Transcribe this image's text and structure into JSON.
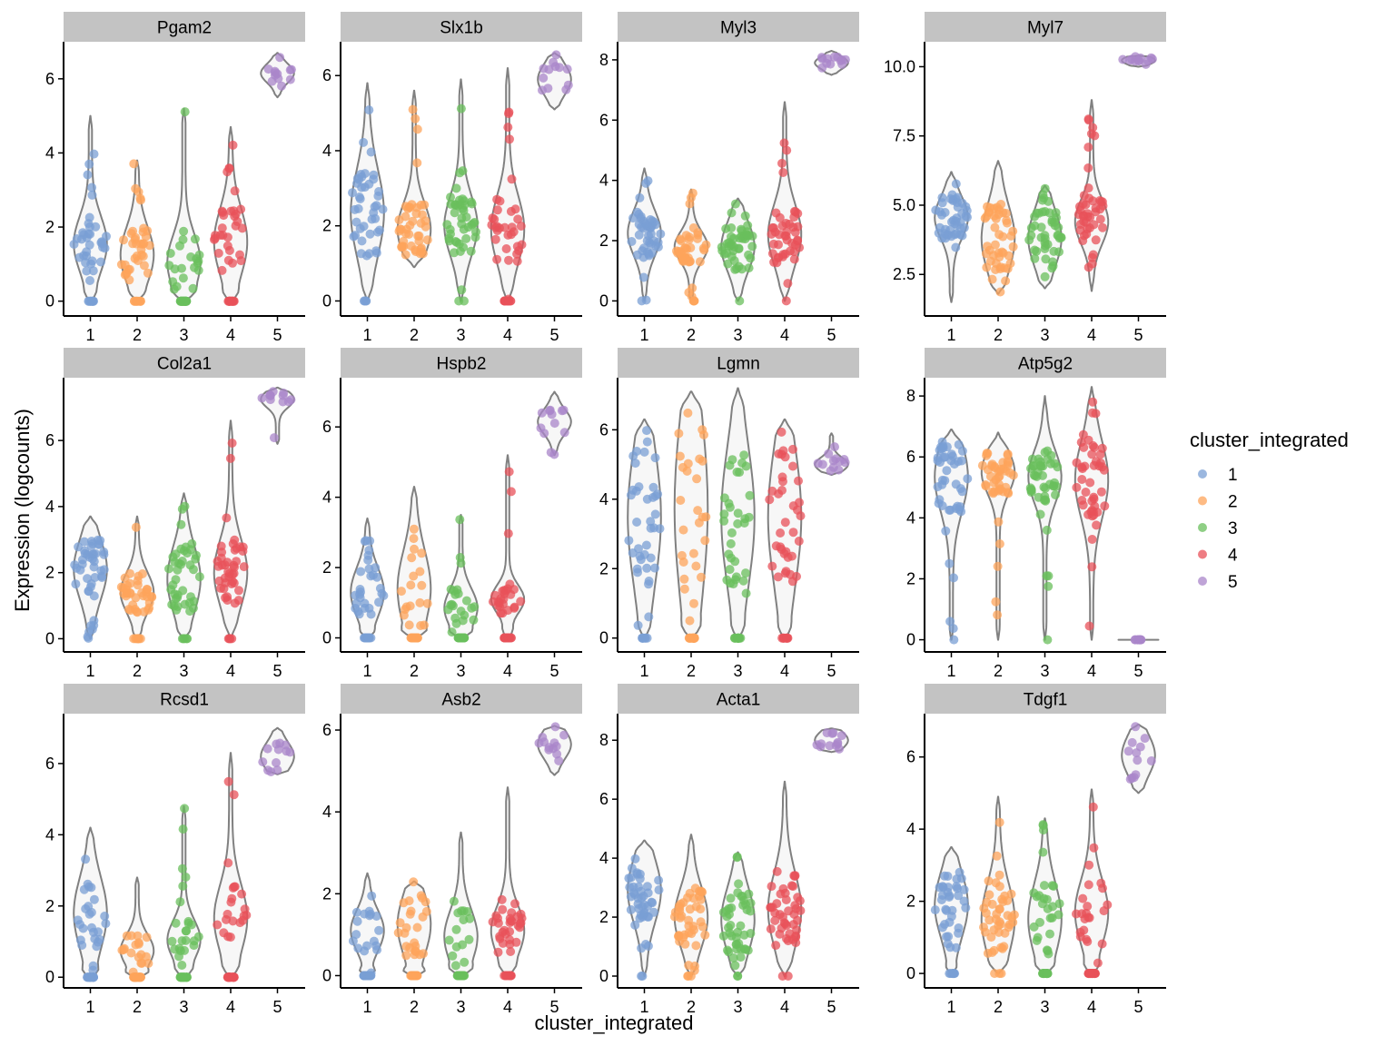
{
  "chart_data": {
    "type": "violin",
    "xlabel": "cluster_integrated",
    "ylabel": "Expression (logcounts)",
    "categories": [
      "1",
      "2",
      "3",
      "4",
      "5"
    ],
    "legend": {
      "title": "cluster_integrated",
      "placement": "right",
      "entries": [
        {
          "label": "1",
          "color": "#7a9fd4"
        },
        {
          "label": "2",
          "color": "#fda45b"
        },
        {
          "label": "3",
          "color": "#69bf5c"
        },
        {
          "label": "4",
          "color": "#e8525a"
        },
        {
          "label": "5",
          "color": "#a985c9"
        }
      ]
    },
    "panels": [
      {
        "gene": "Pgam2",
        "ylim": [
          -0.4,
          7.0
        ],
        "yticks": [
          0,
          2,
          4,
          6
        ],
        "tick_labels": [
          "0",
          "2",
          "4",
          "6"
        ],
        "series": [
          {
            "cluster": "1",
            "min": 0,
            "max": 5.0,
            "bulk": [
              0.8,
              2.3
            ],
            "zero_fraction": 0.3
          },
          {
            "cluster": "2",
            "min": 0,
            "max": 3.8,
            "bulk": [
              0.5,
              2.0
            ],
            "zero_fraction": 0.15
          },
          {
            "cluster": "3",
            "min": 0,
            "max": 5.2,
            "bulk": [
              0.3,
              1.8
            ],
            "zero_fraction": 0.5
          },
          {
            "cluster": "4",
            "min": 0,
            "max": 4.7,
            "bulk": [
              0.7,
              2.5
            ],
            "zero_fraction": 0.35
          },
          {
            "cluster": "5",
            "min": 5.5,
            "max": 6.7,
            "bulk": [
              5.9,
              6.4
            ],
            "zero_fraction": 0
          }
        ]
      },
      {
        "gene": "Slx1b",
        "ylim": [
          -0.4,
          6.9
        ],
        "yticks": [
          0,
          2,
          4,
          6
        ],
        "tick_labels": [
          "0",
          "2",
          "4",
          "6"
        ],
        "series": [
          {
            "cluster": "1",
            "min": 0,
            "max": 5.8,
            "bulk": [
              1.2,
              3.5
            ],
            "zero_fraction": 0.05
          },
          {
            "cluster": "2",
            "min": 0.9,
            "max": 5.6,
            "bulk": [
              1.2,
              2.6
            ],
            "zero_fraction": 0
          },
          {
            "cluster": "3",
            "min": 0,
            "max": 5.9,
            "bulk": [
              1.2,
              2.8
            ],
            "zero_fraction": 0.05
          },
          {
            "cluster": "4",
            "min": 0,
            "max": 6.2,
            "bulk": [
              1.0,
              2.8
            ],
            "zero_fraction": 0.15
          },
          {
            "cluster": "5",
            "min": 5.1,
            "max": 6.6,
            "bulk": [
              5.5,
              6.3
            ],
            "zero_fraction": 0
          }
        ]
      },
      {
        "gene": "Myl3",
        "ylim": [
          -0.5,
          8.6
        ],
        "yticks": [
          0,
          2,
          4,
          6,
          8
        ],
        "tick_labels": [
          "0",
          "2",
          "4",
          "6",
          "8"
        ],
        "series": [
          {
            "cluster": "1",
            "min": 0,
            "max": 4.4,
            "bulk": [
              1.5,
              3.0
            ],
            "zero_fraction": 0.02
          },
          {
            "cluster": "2",
            "min": 0,
            "max": 3.7,
            "bulk": [
              1.3,
              2.3
            ],
            "zero_fraction": 0.05
          },
          {
            "cluster": "3",
            "min": 0,
            "max": 3.4,
            "bulk": [
              1.0,
              2.6
            ],
            "zero_fraction": 0.02
          },
          {
            "cluster": "4",
            "min": 0,
            "max": 6.6,
            "bulk": [
              1.2,
              3.2
            ],
            "zero_fraction": 0.05
          },
          {
            "cluster": "5",
            "min": 7.5,
            "max": 8.3,
            "bulk": [
              7.7,
              8.1
            ],
            "zero_fraction": 0
          }
        ]
      },
      {
        "gene": "Myl7",
        "ylim": [
          1.0,
          10.9
        ],
        "yticks": [
          2.5,
          5.0,
          7.5,
          10.0
        ],
        "tick_labels": [
          "2.5",
          "5.0",
          "7.5",
          "10.0"
        ],
        "series": [
          {
            "cluster": "1",
            "min": 1.5,
            "max": 6.2,
            "bulk": [
              3.8,
              5.3
            ],
            "zero_fraction": 0
          },
          {
            "cluster": "2",
            "min": 1.8,
            "max": 6.6,
            "bulk": [
              2.6,
              5.0
            ],
            "zero_fraction": 0
          },
          {
            "cluster": "3",
            "min": 2.0,
            "max": 5.7,
            "bulk": [
              2.8,
              4.8
            ],
            "zero_fraction": 0
          },
          {
            "cluster": "4",
            "min": 1.9,
            "max": 8.8,
            "bulk": [
              3.6,
              5.2
            ],
            "zero_fraction": 0
          },
          {
            "cluster": "5",
            "min": 10.0,
            "max": 10.4,
            "bulk": [
              10.1,
              10.35
            ],
            "zero_fraction": 0
          }
        ]
      },
      {
        "gene": "Col2a1",
        "ylim": [
          -0.4,
          7.9
        ],
        "yticks": [
          0,
          2,
          4,
          6
        ],
        "tick_labels": [
          "0",
          "2",
          "4",
          "6"
        ],
        "series": [
          {
            "cluster": "1",
            "min": 0,
            "max": 3.7,
            "bulk": [
              1.2,
              3.0
            ],
            "zero_fraction": 0.03
          },
          {
            "cluster": "2",
            "min": 0,
            "max": 3.7,
            "bulk": [
              0.8,
              2.0
            ],
            "zero_fraction": 0.15
          },
          {
            "cluster": "3",
            "min": 0,
            "max": 4.4,
            "bulk": [
              0.8,
              2.8
            ],
            "zero_fraction": 0.15
          },
          {
            "cluster": "4",
            "min": 0,
            "max": 6.6,
            "bulk": [
              1.0,
              3.0
            ],
            "zero_fraction": 0.05
          },
          {
            "cluster": "5",
            "min": 5.9,
            "max": 7.6,
            "bulk": [
              7.0,
              7.5
            ],
            "zero_fraction": 0
          }
        ]
      },
      {
        "gene": "Hspb2",
        "ylim": [
          -0.4,
          7.4
        ],
        "yticks": [
          0,
          2,
          4,
          6
        ],
        "tick_labels": [
          "0",
          "2",
          "4",
          "6"
        ],
        "series": [
          {
            "cluster": "1",
            "min": 0,
            "max": 3.4,
            "bulk": [
              0.6,
              2.0
            ],
            "zero_fraction": 0.3
          },
          {
            "cluster": "2",
            "min": 0,
            "max": 4.3,
            "bulk": [
              0.3,
              2.5
            ],
            "zero_fraction": 0.6
          },
          {
            "cluster": "3",
            "min": 0,
            "max": 3.5,
            "bulk": [
              0.3,
              1.4
            ],
            "zero_fraction": 0.5
          },
          {
            "cluster": "4",
            "min": 0,
            "max": 5.2,
            "bulk": [
              0.7,
              1.5
            ],
            "zero_fraction": 0.4
          },
          {
            "cluster": "5",
            "min": 5.2,
            "max": 7.0,
            "bulk": [
              5.8,
              6.5
            ],
            "zero_fraction": 0
          }
        ]
      },
      {
        "gene": "Lgmn",
        "ylim": [
          -0.4,
          7.5
        ],
        "yticks": [
          0,
          2,
          4,
          6
        ],
        "tick_labels": [
          "0",
          "2",
          "4",
          "6"
        ],
        "series": [
          {
            "cluster": "1",
            "min": 0,
            "max": 6.3,
            "bulk": [
              1.5,
              5.5
            ],
            "zero_fraction": 0.15
          },
          {
            "cluster": "2",
            "min": 0,
            "max": 7.1,
            "bulk": [
              1.0,
              6.5
            ],
            "zero_fraction": 0.4
          },
          {
            "cluster": "3",
            "min": 0,
            "max": 7.2,
            "bulk": [
              1.5,
              5.5
            ],
            "zero_fraction": 0.3
          },
          {
            "cluster": "4",
            "min": 0,
            "max": 6.3,
            "bulk": [
              1.5,
              5.5
            ],
            "zero_fraction": 0.25
          },
          {
            "cluster": "5",
            "min": 4.7,
            "max": 5.9,
            "bulk": [
              4.8,
              5.2
            ],
            "zero_fraction": 0
          }
        ]
      },
      {
        "gene": "Atp5g2",
        "ylim": [
          -0.4,
          8.6
        ],
        "yticks": [
          0,
          2,
          4,
          6,
          8
        ],
        "tick_labels": [
          "0",
          "2",
          "4",
          "6",
          "8"
        ],
        "series": [
          {
            "cluster": "1",
            "min": 0,
            "max": 6.9,
            "bulk": [
              4.2,
              6.5
            ],
            "zero_fraction": 0.05
          },
          {
            "cluster": "2",
            "min": 0,
            "max": 6.8,
            "bulk": [
              4.8,
              6.2
            ],
            "zero_fraction": 0.02
          },
          {
            "cluster": "3",
            "min": 0,
            "max": 8.0,
            "bulk": [
              4.5,
              6.2
            ],
            "zero_fraction": 0.02
          },
          {
            "cluster": "4",
            "min": 0,
            "max": 8.3,
            "bulk": [
              4.0,
              6.5
            ],
            "zero_fraction": 0.02
          },
          {
            "cluster": "5",
            "min": 0,
            "max": 0,
            "bulk": [
              0,
              0
            ],
            "zero_fraction": 1.0
          }
        ]
      },
      {
        "gene": "Rcsd1",
        "ylim": [
          -0.3,
          7.4
        ],
        "yticks": [
          0,
          2,
          4,
          6
        ],
        "tick_labels": [
          "0",
          "2",
          "4",
          "6"
        ],
        "series": [
          {
            "cluster": "1",
            "min": 0,
            "max": 4.2,
            "bulk": [
              0.8,
              2.8
            ],
            "zero_fraction": 0.45
          },
          {
            "cluster": "2",
            "min": 0,
            "max": 2.8,
            "bulk": [
              0.3,
              1.2
            ],
            "zero_fraction": 0.6
          },
          {
            "cluster": "3",
            "min": 0,
            "max": 4.8,
            "bulk": [
              0.5,
              1.6
            ],
            "zero_fraction": 0.5
          },
          {
            "cluster": "4",
            "min": 0,
            "max": 6.3,
            "bulk": [
              0.7,
              2.6
            ],
            "zero_fraction": 0.4
          },
          {
            "cluster": "5",
            "min": 5.7,
            "max": 7.0,
            "bulk": [
              5.8,
              6.6
            ],
            "zero_fraction": 0
          }
        ]
      },
      {
        "gene": "Asb2",
        "ylim": [
          -0.3,
          6.4
        ],
        "yticks": [
          0,
          2,
          4,
          6
        ],
        "tick_labels": [
          "0",
          "2",
          "4",
          "6"
        ],
        "series": [
          {
            "cluster": "1",
            "min": 0,
            "max": 2.5,
            "bulk": [
              0.6,
              1.6
            ],
            "zero_fraction": 0.5
          },
          {
            "cluster": "2",
            "min": 0,
            "max": 2.3,
            "bulk": [
              0.5,
              2.0
            ],
            "zero_fraction": 0.6
          },
          {
            "cluster": "3",
            "min": 0,
            "max": 3.5,
            "bulk": [
              0.3,
              1.6
            ],
            "zero_fraction": 0.55
          },
          {
            "cluster": "4",
            "min": 0,
            "max": 4.6,
            "bulk": [
              0.5,
              1.7
            ],
            "zero_fraction": 0.4
          },
          {
            "cluster": "5",
            "min": 4.9,
            "max": 6.1,
            "bulk": [
              5.3,
              6.0
            ],
            "zero_fraction": 0
          }
        ]
      },
      {
        "gene": "Acta1",
        "ylim": [
          -0.4,
          8.9
        ],
        "yticks": [
          0,
          2,
          4,
          6,
          8
        ],
        "tick_labels": [
          "0",
          "2",
          "4",
          "6",
          "8"
        ],
        "series": [
          {
            "cluster": "1",
            "min": 0,
            "max": 4.6,
            "bulk": [
              1.8,
              4.0
            ],
            "zero_fraction": 0.02
          },
          {
            "cluster": "2",
            "min": 0,
            "max": 4.8,
            "bulk": [
              1.0,
              3.0
            ],
            "zero_fraction": 0.05
          },
          {
            "cluster": "3",
            "min": 0,
            "max": 4.2,
            "bulk": [
              0.8,
              3.0
            ],
            "zero_fraction": 0.05
          },
          {
            "cluster": "4",
            "min": 0,
            "max": 6.6,
            "bulk": [
              1.0,
              3.5
            ],
            "zero_fraction": 0.03
          },
          {
            "cluster": "5",
            "min": 7.6,
            "max": 8.4,
            "bulk": [
              7.7,
              8.3
            ],
            "zero_fraction": 0
          }
        ]
      },
      {
        "gene": "Tdgf1",
        "ylim": [
          -0.4,
          7.2
        ],
        "yticks": [
          0,
          2,
          4,
          6
        ],
        "tick_labels": [
          "0",
          "2",
          "4",
          "6"
        ],
        "series": [
          {
            "cluster": "1",
            "min": 0,
            "max": 3.5,
            "bulk": [
              1.0,
              2.8
            ],
            "zero_fraction": 0.25
          },
          {
            "cluster": "2",
            "min": 0,
            "max": 4.9,
            "bulk": [
              0.5,
              2.5
            ],
            "zero_fraction": 0.2
          },
          {
            "cluster": "3",
            "min": 0,
            "max": 4.3,
            "bulk": [
              0.5,
              2.5
            ],
            "zero_fraction": 0.35
          },
          {
            "cluster": "4",
            "min": 0,
            "max": 5.1,
            "bulk": [
              0.8,
              2.6
            ],
            "zero_fraction": 0.45
          },
          {
            "cluster": "5",
            "min": 5.0,
            "max": 6.9,
            "bulk": [
              5.5,
              6.6
            ],
            "zero_fraction": 0
          }
        ]
      }
    ]
  }
}
